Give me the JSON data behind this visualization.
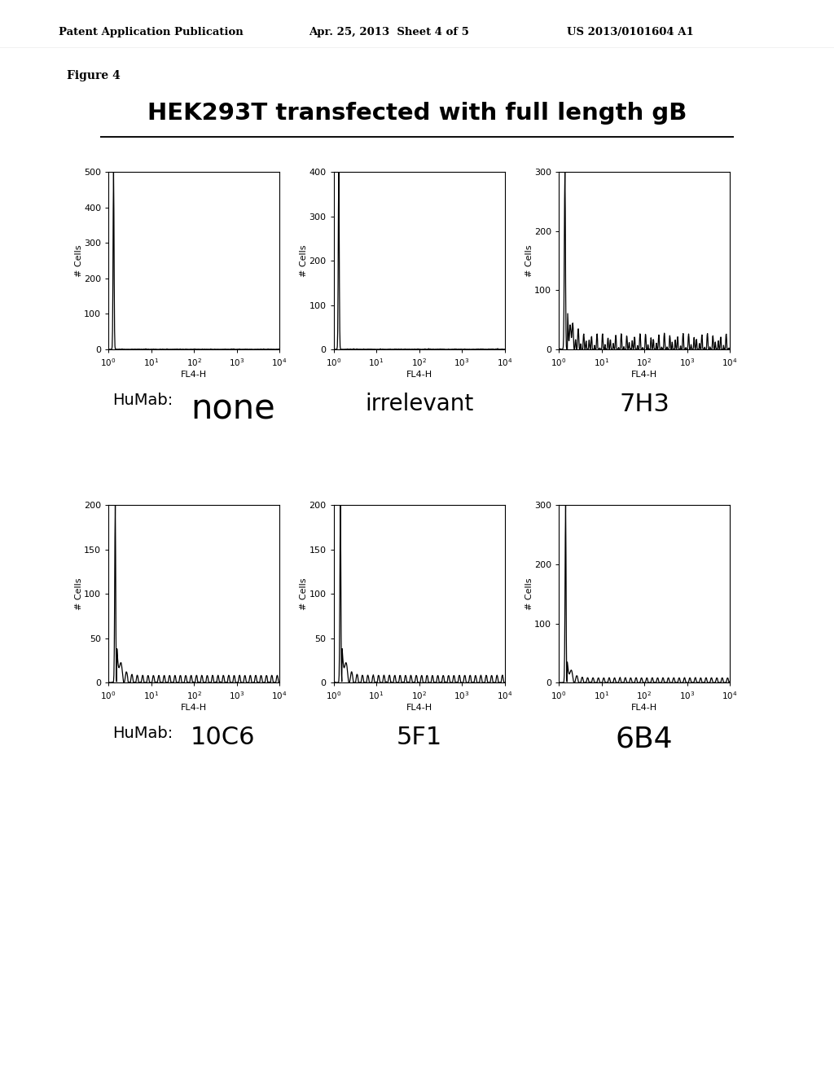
{
  "title": "HEK293T transfected with full length gB",
  "figure_label": "Figure 4",
  "patent_left": "Patent Application Publication",
  "patent_mid": "Apr. 25, 2013  Sheet 4 of 5",
  "patent_right": "US 2013/0101604 A1",
  "xlabel": "FL4-H",
  "ylabel": "# Cells",
  "row1_labels": [
    "none",
    "irrelevant",
    "7H3"
  ],
  "row2_labels": [
    "10C6",
    "5F1",
    "6B4"
  ],
  "humab_prefix": "HuMab:",
  "row1_ylims": [
    500,
    400,
    300
  ],
  "row2_ylims": [
    200,
    200,
    300
  ],
  "row1_yticks": [
    [
      0,
      100,
      200,
      300,
      400,
      500
    ],
    [
      0,
      100,
      200,
      300,
      400
    ],
    [
      0,
      100,
      200,
      300
    ]
  ],
  "row2_yticks": [
    [
      0,
      50,
      100,
      150,
      200
    ],
    [
      0,
      50,
      100,
      150,
      200
    ],
    [
      0,
      100,
      200,
      300
    ]
  ],
  "bg_color": "#ffffff",
  "line_color": "#000000"
}
